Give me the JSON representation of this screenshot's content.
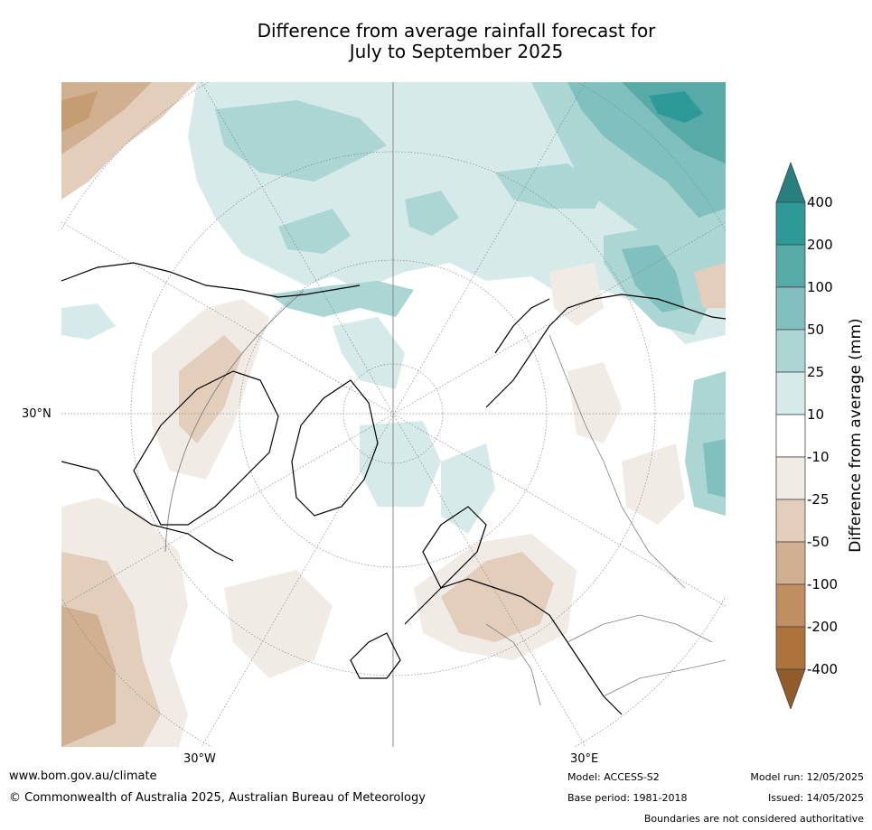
{
  "title": {
    "line1": "Difference from average rainfall forecast for",
    "line2": "July to September 2025"
  },
  "map": {
    "projection": "north-polar-stereographic",
    "lat_label": "30°N",
    "lon_labels": [
      "30°W",
      "30°E"
    ],
    "colors": {
      "gridline": "#888888",
      "coastline": "#000000",
      "borders": "#808080"
    }
  },
  "colorbar": {
    "title": "Difference from average (mm)",
    "tick_labels": [
      "400",
      "200",
      "100",
      "50",
      "25",
      "10",
      "-10",
      "-25",
      "-50",
      "-100",
      "-200",
      "-400"
    ],
    "bins_top_to_bottom": [
      {
        "range": ">400",
        "color": "#287f7f"
      },
      {
        "range": "200 to 400",
        "color": "#2e9a98"
      },
      {
        "range": "100 to 200",
        "color": "#58aaa9"
      },
      {
        "range": "50 to 100",
        "color": "#80c1bf"
      },
      {
        "range": "25 to 50",
        "color": "#abd6d4"
      },
      {
        "range": "10 to 25",
        "color": "#d5eae9"
      },
      {
        "range": "-10 to 10",
        "color": "#ffffff"
      },
      {
        "range": "-25 to -10",
        "color": "#f1ebe5"
      },
      {
        "range": "-50 to -25",
        "color": "#e2ceba"
      },
      {
        "range": "-100 to -50",
        "color": "#d0b090"
      },
      {
        "range": "-200 to -100",
        "color": "#bf8f61"
      },
      {
        "range": "-400 to -200",
        "color": "#ad733b"
      },
      {
        "range": "<-400",
        "color": "#915c2a"
      }
    ]
  },
  "footer": {
    "website": "www.bom.gov.au/climate",
    "copyright": "© Commonwealth of Australia 2025, Australian Bureau of Meteorology",
    "model": "Model: ACCESS-S2",
    "base_period": "Base period: 1981-2018",
    "model_run": "Model run: 12/05/2025",
    "issued": "Issued: 14/05/2025",
    "disclaimer": "Boundaries are not considered authoritative"
  }
}
